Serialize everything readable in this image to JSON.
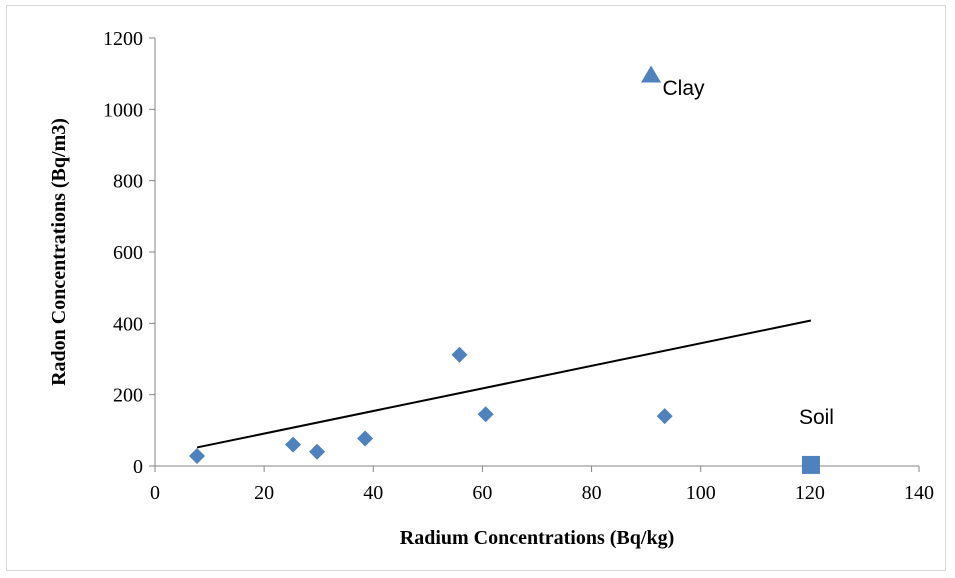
{
  "chart_data": {
    "type": "scatter",
    "title": "",
    "xlabel": "Radium Concentrations (Bq/kg)",
    "ylabel": "Radon Concentrations (Bq/m3)",
    "xlim": [
      0,
      140
    ],
    "ylim": [
      0,
      1200
    ],
    "xticks": [
      0,
      20,
      40,
      60,
      80,
      100,
      120,
      140
    ],
    "yticks": [
      0,
      200,
      400,
      600,
      800,
      1000,
      1200
    ],
    "grid": false,
    "legend": "none",
    "series": [
      {
        "marker": "diamond",
        "color": "#4f81bd",
        "points": [
          {
            "x": 7.7,
            "y": 28
          },
          {
            "x": 25.3,
            "y": 60
          },
          {
            "x": 29.7,
            "y": 40
          },
          {
            "x": 38.5,
            "y": 77
          },
          {
            "x": 55.8,
            "y": 312
          },
          {
            "x": 60.6,
            "y": 145
          },
          {
            "x": 93.4,
            "y": 140
          }
        ]
      },
      {
        "name": "Clay",
        "marker": "triangle",
        "color": "#4f81bd",
        "points": [
          {
            "x": 90.9,
            "y": 1095
          }
        ]
      },
      {
        "name": "Soil",
        "marker": "square",
        "color": "#4f81bd",
        "points": [
          {
            "x": 120.2,
            "y": 3
          }
        ]
      }
    ],
    "trendline": {
      "color": "#000000",
      "from": {
        "x": 7.7,
        "y": 52
      },
      "to": {
        "x": 120.2,
        "y": 408
      }
    },
    "annotations": [
      {
        "text": "Clay",
        "x": 93,
        "y": 1040
      },
      {
        "text": "Soil",
        "x": 118,
        "y": 118
      }
    ]
  }
}
